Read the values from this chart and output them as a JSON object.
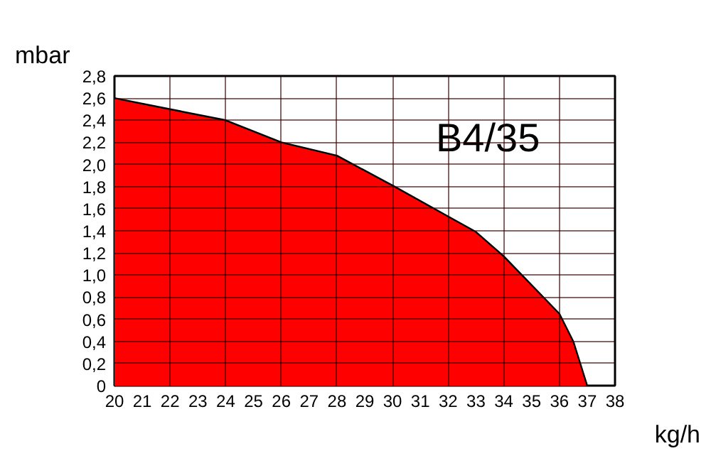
{
  "chart_data": {
    "type": "area",
    "xlabel": "kg/h",
    "ylabel": "mbar",
    "annotations": [
      "B4/35"
    ],
    "x": [
      20,
      22,
      24,
      26,
      28,
      30,
      32,
      33,
      34,
      35,
      36,
      36.5,
      37
    ],
    "series": [
      {
        "color": "#ff0000",
        "values": [
          2.6,
          2.5,
          2.4,
          2.2,
          2.08,
          1.81,
          1.53,
          1.39,
          1.17,
          0.91,
          0.65,
          0.4,
          0
        ]
      }
    ],
    "xlim": [
      20,
      38
    ],
    "ylim": [
      0,
      2.8
    ],
    "xticks": [
      20,
      21,
      22,
      23,
      24,
      25,
      26,
      27,
      28,
      29,
      30,
      31,
      32,
      33,
      34,
      35,
      36,
      37,
      38
    ],
    "yticks": [
      0,
      {
        "value": 0.2,
        "label": "0,2"
      },
      {
        "value": 0.4,
        "label": "0,4"
      },
      {
        "value": 0.6,
        "label": "0,6"
      },
      {
        "value": 0.8,
        "label": "0,8"
      },
      {
        "value": 1.0,
        "label": "1,0"
      },
      {
        "value": 1.2,
        "label": "1,2"
      },
      {
        "value": 1.4,
        "label": "1,4"
      },
      {
        "value": 1.6,
        "label": "1,6"
      },
      {
        "value": 1.8,
        "label": "1,8"
      },
      {
        "value": 2.0,
        "label": "2,0"
      },
      {
        "value": 2.2,
        "label": "2,2"
      },
      {
        "value": 2.4,
        "label": "2,4"
      },
      {
        "value": 2.6,
        "label": "2,6"
      },
      {
        "value": 2.8,
        "label": "2,8"
      }
    ],
    "grid": true
  }
}
